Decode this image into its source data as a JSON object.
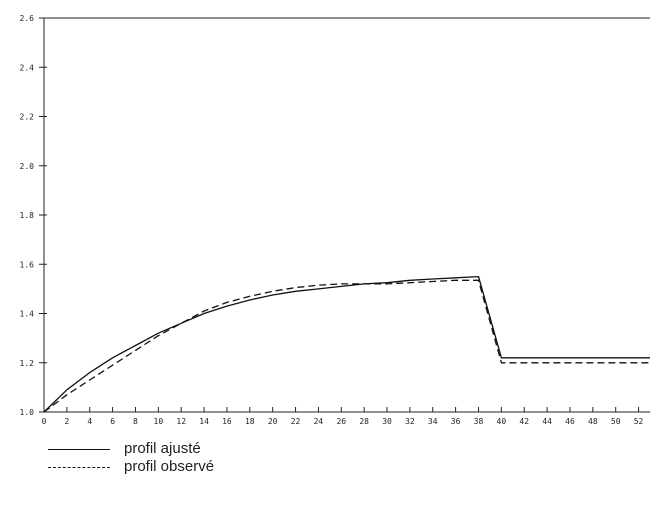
{
  "chart_data": {
    "type": "line",
    "xlabel": "",
    "ylabel": "",
    "xlim": [
      0,
      53
    ],
    "ylim": [
      1.0,
      2.6
    ],
    "x_ticks": [
      0,
      2,
      4,
      6,
      8,
      10,
      12,
      14,
      16,
      18,
      20,
      22,
      24,
      26,
      28,
      30,
      32,
      34,
      36,
      38,
      40,
      42,
      44,
      46,
      48,
      50,
      52
    ],
    "y_ticks": [
      1.0,
      1.2,
      1.4,
      1.6,
      1.8,
      2.0,
      2.2,
      2.4,
      2.6
    ],
    "x_tick_labels": [
      "0",
      "2",
      "4",
      "6",
      "8",
      "10",
      "12",
      "14",
      "16",
      "18",
      "20",
      "22",
      "24",
      "26",
      "28",
      "30",
      "32",
      "34",
      "36",
      "38",
      "40",
      "42",
      "44",
      "46",
      "48",
      "50",
      "52"
    ],
    "y_tick_labels": [
      "1.0",
      "1.2",
      "1.4",
      "1.6",
      "1.8",
      "2.0",
      "2.2",
      "2.4",
      "2.6"
    ],
    "series": [
      {
        "name": "profil ajusté",
        "style": "solid",
        "color": "#111111",
        "points": [
          [
            0,
            1.0
          ],
          [
            2,
            1.09
          ],
          [
            4,
            1.16
          ],
          [
            6,
            1.22
          ],
          [
            8,
            1.27
          ],
          [
            10,
            1.32
          ],
          [
            12,
            1.36
          ],
          [
            14,
            1.4
          ],
          [
            16,
            1.43
          ],
          [
            18,
            1.455
          ],
          [
            20,
            1.475
          ],
          [
            22,
            1.49
          ],
          [
            24,
            1.5
          ],
          [
            26,
            1.51
          ],
          [
            28,
            1.52
          ],
          [
            30,
            1.525
          ],
          [
            32,
            1.535
          ],
          [
            34,
            1.54
          ],
          [
            36,
            1.545
          ],
          [
            38,
            1.55
          ],
          [
            40,
            1.22
          ],
          [
            53,
            1.22
          ]
        ]
      },
      {
        "name": "profil observé",
        "style": "dashed",
        "color": "#111111",
        "points": [
          [
            0,
            1.0
          ],
          [
            2,
            1.07
          ],
          [
            4,
            1.13
          ],
          [
            6,
            1.19
          ],
          [
            8,
            1.25
          ],
          [
            10,
            1.31
          ],
          [
            12,
            1.36
          ],
          [
            14,
            1.41
          ],
          [
            16,
            1.445
          ],
          [
            18,
            1.47
          ],
          [
            20,
            1.49
          ],
          [
            22,
            1.505
          ],
          [
            24,
            1.515
          ],
          [
            26,
            1.52
          ],
          [
            28,
            1.52
          ],
          [
            30,
            1.52
          ],
          [
            32,
            1.525
          ],
          [
            34,
            1.53
          ],
          [
            36,
            1.535
          ],
          [
            38,
            1.535
          ],
          [
            40,
            1.2
          ],
          [
            53,
            1.2
          ]
        ]
      }
    ]
  },
  "legend": {
    "items": [
      {
        "label": "profil ajusté",
        "style": "solid"
      },
      {
        "label": "profil observé",
        "style": "dashed"
      }
    ]
  }
}
